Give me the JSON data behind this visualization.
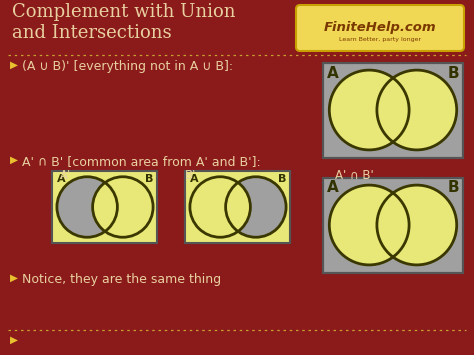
{
  "bg_color": "#8B1A1A",
  "title": "Complement with Union\nand Intersections",
  "title_color": "#E8D0A0",
  "title_fontsize": 13,
  "logo_text": "FiniteHelp.com",
  "logo_subtext": "Learn Better, party longer",
  "logo_bg": "#F0D855",
  "logo_border": "#C8A000",
  "bullet1": "(A ∪ B)' [everything not in A ∪ B]:",
  "bullet2": "A' ∩ B' [common area from A' and B']:",
  "bullet3": "Notice, they are the same thing",
  "venn_box_color": "#A0A0A0",
  "venn_box_edge": "#555555",
  "venn_circle_fill": "#E8E878",
  "venn_circle_edge": "#3A3800",
  "venn_circle_lw": 2.0,
  "text_color": "#E8D0A0",
  "bullet_color": "#E8C030",
  "separator_color": "#C8A030"
}
